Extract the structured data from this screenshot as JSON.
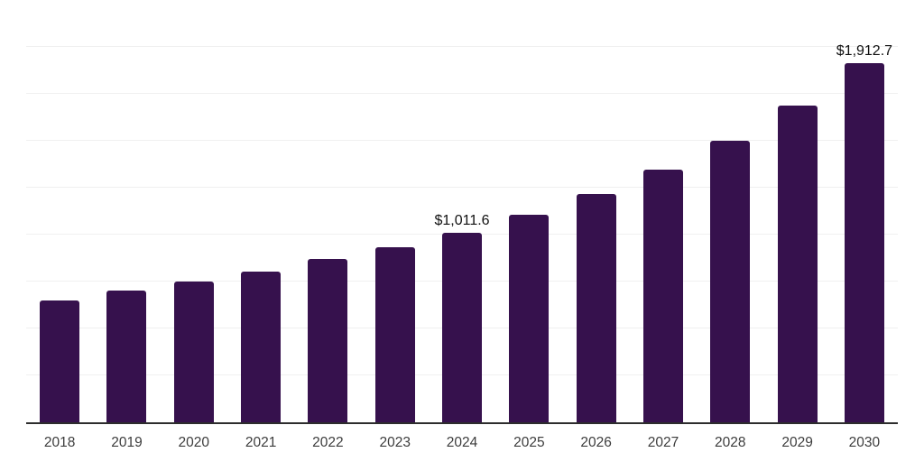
{
  "chart_data": {
    "type": "bar",
    "title": "",
    "xlabel": "",
    "ylabel": "",
    "categories": [
      "2018",
      "2019",
      "2020",
      "2021",
      "2022",
      "2023",
      "2024",
      "2025",
      "2026",
      "2027",
      "2028",
      "2029",
      "2030"
    ],
    "values": [
      650,
      700,
      748,
      803,
      870,
      933,
      1011.6,
      1106,
      1215,
      1346,
      1500,
      1687,
      1912.7
    ],
    "series_name": "Market size (USD)",
    "data_labels": [
      {
        "category": "2024",
        "text": "$1,011.6"
      },
      {
        "category": "2030",
        "text": "$1,912.7"
      }
    ],
    "ylim": [
      0,
      2250
    ],
    "grid": "horizontal",
    "gridline_step": 250,
    "legend": "none",
    "colors": {
      "bar": "#36114D",
      "gridline": "#f0f0f0",
      "axis_line": "#2d2d2d",
      "tick_label": "#3d3d3d",
      "data_label": "#111111",
      "background": "#ffffff"
    }
  }
}
